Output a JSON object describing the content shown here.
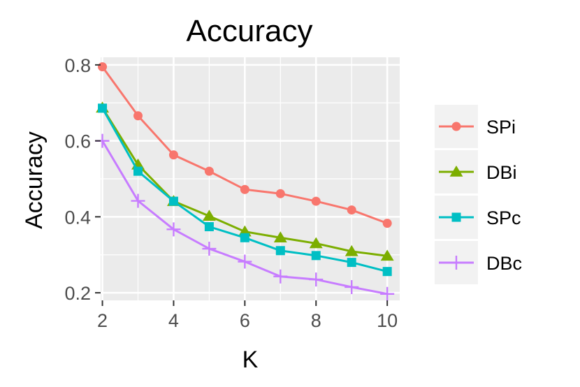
{
  "chart_data": {
    "type": "line",
    "title": "Accuracy",
    "xlabel": "K",
    "ylabel": "Accuracy",
    "x": [
      2,
      3,
      4,
      5,
      6,
      7,
      8,
      9,
      10
    ],
    "xlim": [
      1.95,
      10.35
    ],
    "ylim": [
      0.18,
      0.82
    ],
    "xticks": [
      2,
      4,
      6,
      8,
      10
    ],
    "yticks": [
      0.2,
      0.4,
      0.6,
      0.8
    ],
    "ytick_labels": [
      "0.2",
      "0.4",
      "0.6",
      "0.8"
    ],
    "grid": true,
    "legend_position": "right",
    "series": [
      {
        "name": "SPi",
        "color": "#F8766D",
        "marker": "circle",
        "values": [
          0.795,
          0.666,
          0.563,
          0.52,
          0.472,
          0.461,
          0.441,
          0.418,
          0.383
        ]
      },
      {
        "name": "DBi",
        "color": "#7CAE00",
        "marker": "triangle",
        "values": [
          0.687,
          0.537,
          0.441,
          0.402,
          0.361,
          0.345,
          0.33,
          0.309,
          0.297
        ]
      },
      {
        "name": "SPc",
        "color": "#00BFC4",
        "marker": "square",
        "values": [
          0.686,
          0.52,
          0.441,
          0.374,
          0.345,
          0.311,
          0.298,
          0.28,
          0.256
        ]
      },
      {
        "name": "DBc",
        "color": "#C77CFF",
        "marker": "plus",
        "values": [
          0.6,
          0.442,
          0.367,
          0.316,
          0.282,
          0.243,
          0.235,
          0.215,
          0.197
        ]
      }
    ]
  }
}
